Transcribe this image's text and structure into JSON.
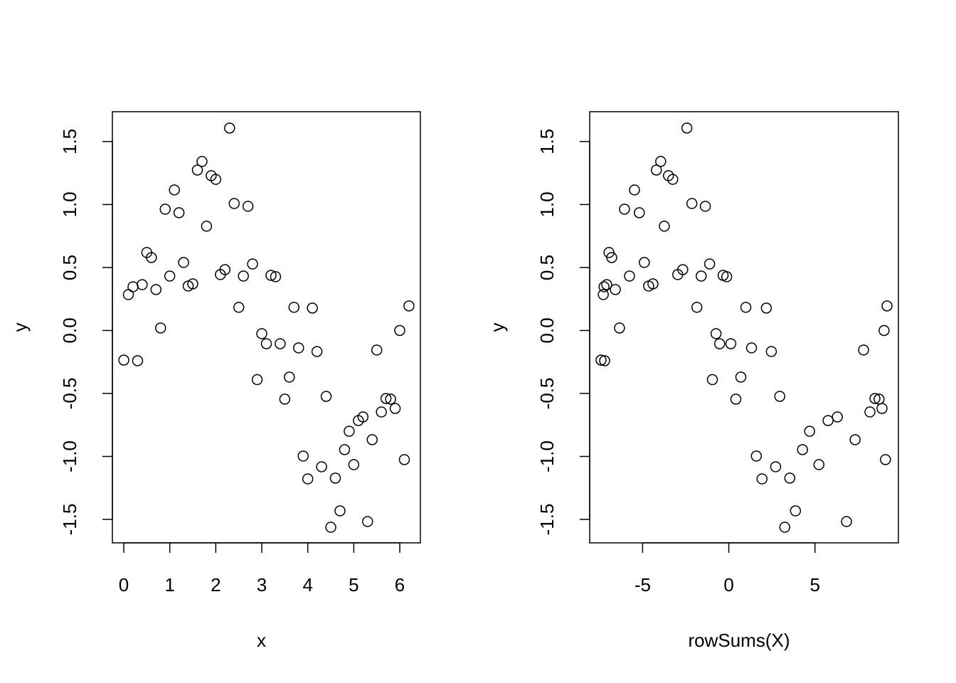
{
  "chart_data": [
    {
      "type": "scatter",
      "xlabel": "x",
      "ylabel": "y",
      "x": [
        0,
        0.1,
        0.2,
        0.3,
        0.4,
        0.5,
        0.6,
        0.7,
        0.8,
        0.9,
        1.0,
        1.1,
        1.2,
        1.3,
        1.4,
        1.5,
        1.6,
        1.7,
        1.8,
        1.9,
        2.0,
        2.1,
        2.2,
        2.3,
        2.4,
        2.5,
        2.6,
        2.7,
        2.8,
        2.9,
        3.0,
        3.1,
        3.2,
        3.3,
        3.4,
        3.5,
        3.6,
        3.7,
        3.8,
        3.9,
        4.0,
        4.1,
        4.2,
        4.3,
        4.4,
        4.5,
        4.6,
        4.7,
        4.8,
        4.9,
        5.0,
        5.1,
        5.2,
        5.3,
        5.4,
        5.5,
        5.6,
        5.7,
        5.8,
        5.9,
        6.0,
        6.1,
        6.2
      ],
      "values": [
        -0.235,
        0.285,
        0.347,
        -0.24,
        0.364,
        0.619,
        0.579,
        0.325,
        0.02,
        0.963,
        0.432,
        1.116,
        0.935,
        0.54,
        0.353,
        0.37,
        1.274,
        1.342,
        0.828,
        1.229,
        1.2,
        0.444,
        0.483,
        1.607,
        1.008,
        0.184,
        0.432,
        0.986,
        0.528,
        -0.39,
        -0.025,
        -0.105,
        0.438,
        0.427,
        -0.105,
        -0.545,
        -0.37,
        0.184,
        -0.138,
        -0.997,
        -1.178,
        0.178,
        -0.167,
        -1.082,
        -0.523,
        -1.562,
        -1.172,
        -1.432,
        -0.946,
        -0.8,
        -1.065,
        -0.715,
        -0.686,
        -1.517,
        -0.867,
        -0.155,
        -0.647,
        -0.54,
        -0.545,
        -0.619,
        0.0,
        -1.025,
        0.195
      ],
      "xlim": [
        -0.248,
        6.448
      ],
      "ylim": [
        -1.686,
        1.737
      ],
      "xticks": [
        0,
        1,
        2,
        3,
        4,
        5,
        6
      ],
      "yticks": [
        -1.5,
        {
          "value": -1,
          "label": "-1.0"
        },
        -0.5,
        {
          "value": 0,
          "label": "0.0"
        },
        0.5,
        {
          "value": 1,
          "label": "1.0"
        },
        1.5
      ]
    },
    {
      "type": "scatter",
      "xlabel": "rowSums(X)",
      "ylabel": "y",
      "x": [
        -7.41,
        -7.28,
        -7.24,
        -7.2,
        -7.08,
        -6.95,
        -6.79,
        -6.58,
        -6.34,
        -6.05,
        -5.76,
        -5.47,
        -5.19,
        -4.9,
        -4.65,
        -4.4,
        -4.2,
        -3.95,
        -3.74,
        -3.5,
        -3.25,
        -2.96,
        -2.67,
        -2.43,
        -2.14,
        -1.85,
        -1.6,
        -1.36,
        -1.11,
        -0.95,
        -0.74,
        -0.53,
        -0.33,
        -0.12,
        0.12,
        0.41,
        0.7,
        0.99,
        1.32,
        1.6,
        1.93,
        2.18,
        2.47,
        2.72,
        2.96,
        3.25,
        3.54,
        3.87,
        4.28,
        4.69,
        5.23,
        5.76,
        6.3,
        6.83,
        7.33,
        7.82,
        8.19,
        8.48,
        8.72,
        8.89,
        9.01,
        9.09,
        9.18
      ],
      "values": [
        -0.235,
        0.285,
        0.347,
        -0.24,
        0.364,
        0.619,
        0.579,
        0.325,
        0.02,
        0.963,
        0.432,
        1.116,
        0.935,
        0.54,
        0.353,
        0.37,
        1.274,
        1.342,
        0.828,
        1.229,
        1.2,
        0.444,
        0.483,
        1.607,
        1.008,
        0.184,
        0.432,
        0.986,
        0.528,
        -0.39,
        -0.025,
        -0.105,
        0.438,
        0.427,
        -0.105,
        -0.545,
        -0.37,
        0.184,
        -0.138,
        -0.997,
        -1.178,
        0.178,
        -0.167,
        -1.082,
        -0.523,
        -1.562,
        -1.172,
        -1.432,
        -0.946,
        -0.8,
        -1.065,
        -0.715,
        -0.686,
        -1.517,
        -0.867,
        -0.155,
        -0.647,
        -0.54,
        -0.545,
        -0.619,
        0.0,
        -1.025,
        0.195
      ],
      "xlim": [
        -8.07,
        9.84
      ],
      "ylim": [
        -1.686,
        1.737
      ],
      "xticks": [
        -5,
        0,
        5
      ],
      "yticks": [
        -1.5,
        {
          "value": -1,
          "label": "-1.0"
        },
        -0.5,
        {
          "value": 0,
          "label": "0.0"
        },
        0.5,
        {
          "value": 1,
          "label": "1.0"
        },
        1.5
      ]
    }
  ]
}
